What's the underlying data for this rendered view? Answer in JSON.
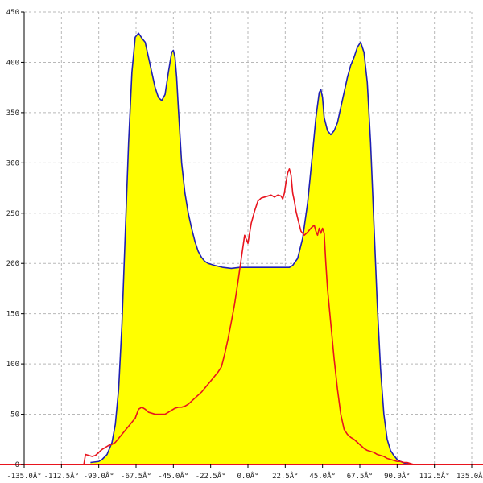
{
  "chart_data": {
    "type": "area",
    "title": "",
    "xlabel": "",
    "ylabel": "",
    "xlim": [
      -135,
      135
    ],
    "ylim": [
      0,
      450
    ],
    "grid": true,
    "x_ticks": [
      -135,
      -112.5,
      -90,
      -67.5,
      -45,
      -22.5,
      0,
      22.5,
      45,
      67.5,
      90,
      112.5,
      135
    ],
    "x_tick_labels": [
      "-135.0Â°",
      "-112.5Â°",
      "-90.0Â°",
      "-67.5Â°",
      "-45.0Â°",
      "-22.5Â°",
      "0.0Â°",
      "22.5Â°",
      "45.0Â°",
      "67.5Â°",
      "90.0Â°",
      "112.5Â°",
      "135.0Â°"
    ],
    "y_ticks": [
      0,
      50,
      100,
      150,
      200,
      250,
      300,
      350,
      400,
      450
    ],
    "y_tick_labels": [
      "0",
      "50",
      "100",
      "150",
      "200",
      "250",
      "300",
      "350",
      "400",
      "450"
    ],
    "colors": {
      "fill": "#ffff00",
      "series_1": "#1f1fb4",
      "series_2": "#e8141e",
      "baseline": "#e8141e",
      "grid": "#b8b8b8",
      "axis": "#000000"
    },
    "series": [
      {
        "filled": true,
        "color": "#1f1fb4",
        "x": [
          -95,
          -90,
          -88,
          -85,
          -82,
          -80,
          -78,
          -76,
          -74,
          -72,
          -70,
          -68,
          -66,
          -64,
          -62,
          -60,
          -58,
          -56,
          -54,
          -52,
          -50,
          -48,
          -46,
          -45,
          -44,
          -43,
          -42,
          -40,
          -38,
          -36,
          -34,
          -32,
          -30,
          -28,
          -26,
          -24,
          -22,
          -20,
          -15,
          -10,
          -5,
          0,
          5,
          10,
          15,
          20,
          22,
          25,
          27,
          30,
          33,
          36,
          39,
          41,
          43,
          44,
          45,
          46,
          48,
          50,
          52,
          54,
          56,
          58,
          60,
          62,
          64,
          66,
          68,
          70,
          72,
          74,
          76,
          78,
          80,
          82,
          84,
          86,
          88,
          90,
          92,
          95,
          100
        ],
        "y": [
          2,
          3,
          5,
          10,
          22,
          40,
          75,
          140,
          230,
          320,
          390,
          425,
          429,
          424,
          420,
          405,
          390,
          375,
          365,
          362,
          368,
          390,
          410,
          412,
          405,
          385,
          355,
          300,
          270,
          250,
          235,
          222,
          212,
          206,
          202,
          200,
          199,
          198,
          196,
          195,
          196,
          196,
          196,
          196,
          196,
          196,
          196,
          196,
          198,
          205,
          225,
          260,
          310,
          345,
          370,
          373,
          365,
          345,
          332,
          328,
          332,
          340,
          355,
          370,
          385,
          397,
          405,
          415,
          420,
          410,
          380,
          320,
          240,
          160,
          95,
          50,
          25,
          14,
          9,
          5,
          3,
          1,
          0
        ]
      },
      {
        "filled": false,
        "color": "#e8141e",
        "x": [
          -99,
          -98,
          -96,
          -94,
          -92,
          -90,
          -88,
          -86,
          -84,
          -82,
          -80,
          -78,
          -76,
          -74,
          -72,
          -70,
          -68,
          -66,
          -64,
          -62,
          -60,
          -58,
          -56,
          -54,
          -52,
          -50,
          -48,
          -46,
          -44,
          -42,
          -40,
          -38,
          -36,
          -34,
          -32,
          -30,
          -28,
          -26,
          -24,
          -22,
          -20,
          -18,
          -16,
          -14,
          -12,
          -10,
          -8,
          -6,
          -4,
          -2,
          0,
          2,
          4,
          6,
          8,
          10,
          12,
          14,
          16,
          18,
          20,
          21,
          22,
          23,
          24,
          25,
          26,
          27,
          28,
          29,
          30,
          32,
          34,
          36,
          38,
          40,
          41,
          42,
          43,
          44,
          45,
          46,
          47,
          48,
          50,
          52,
          54,
          56,
          58,
          60,
          62,
          64,
          66,
          68,
          70,
          72,
          74,
          76,
          78,
          80,
          82,
          84,
          86,
          88,
          90,
          92,
          94,
          96,
          98,
          100,
          102
        ],
        "y": [
          0,
          10,
          9,
          8,
          9,
          12,
          15,
          17,
          19,
          20,
          22,
          26,
          30,
          34,
          38,
          42,
          46,
          55,
          57,
          55,
          52,
          51,
          50,
          50,
          50,
          50,
          52,
          54,
          56,
          57,
          57,
          58,
          60,
          63,
          66,
          69,
          72,
          76,
          80,
          84,
          88,
          92,
          97,
          110,
          125,
          142,
          160,
          182,
          205,
          228,
          220,
          240,
          252,
          262,
          265,
          266,
          267,
          268,
          266,
          268,
          267,
          264,
          270,
          281,
          290,
          294,
          288,
          270,
          262,
          252,
          245,
          232,
          228,
          231,
          235,
          238,
          232,
          228,
          235,
          230,
          235,
          230,
          200,
          175,
          140,
          105,
          75,
          50,
          35,
          30,
          27,
          25,
          22,
          19,
          16,
          14,
          13,
          12,
          10,
          9,
          8,
          6,
          5,
          4,
          3,
          3,
          2,
          2,
          1,
          0,
          0
        ]
      }
    ]
  }
}
